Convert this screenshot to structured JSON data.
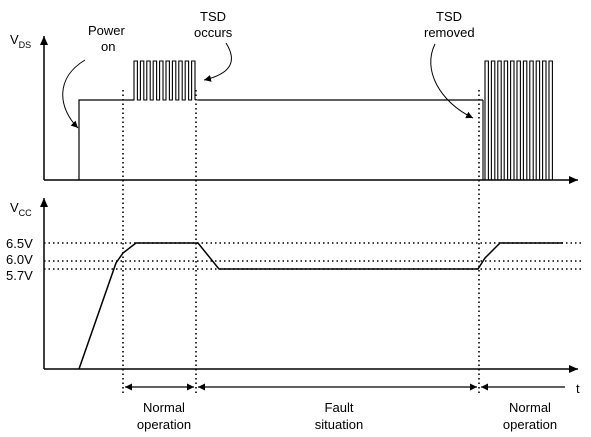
{
  "top_plot": {
    "y_axis_label": {
      "main": "V",
      "sub": "DS"
    },
    "annotations": {
      "power_on": [
        "Power",
        "on"
      ],
      "tsd_occurs": [
        "TSD",
        "occurs"
      ],
      "tsd_removed": [
        "TSD",
        "removed"
      ]
    }
  },
  "bottom_plot": {
    "y_axis_label": {
      "main": "V",
      "sub": "CC"
    },
    "voltage_levels": [
      "6.5V",
      "6.0V",
      "5.7V"
    ]
  },
  "time_axis_label": "t",
  "phases": [
    {
      "name": "normal_start",
      "lines": [
        "Normal",
        "operation"
      ]
    },
    {
      "name": "fault",
      "lines": [
        "Fault",
        "situation"
      ]
    },
    {
      "name": "normal_end",
      "lines": [
        "Normal",
        "operation"
      ]
    }
  ]
}
